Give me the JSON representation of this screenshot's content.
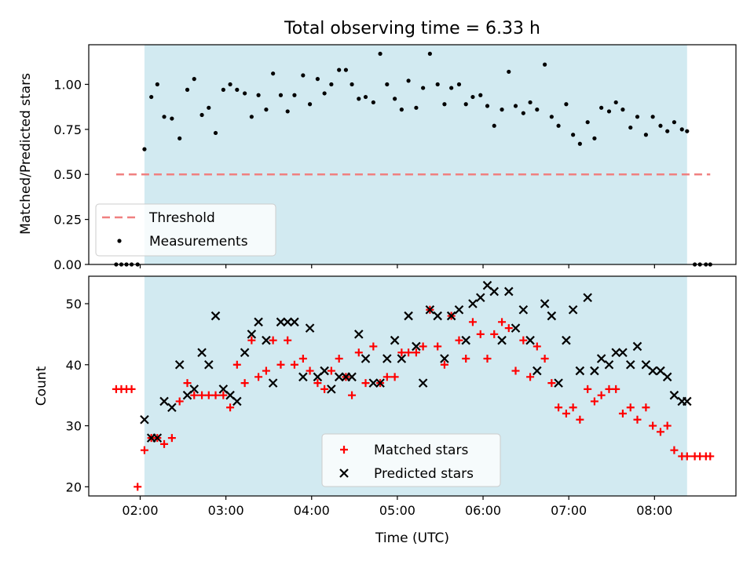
{
  "figure_title": "Total observing time = 6.33 h",
  "colors": {
    "observing_window": "#add8e6",
    "threshold": "#f08080",
    "measurements": "#000000",
    "matched": "#ff0000",
    "predicted": "#000000"
  },
  "chart_data": [
    {
      "type": "scatter",
      "title": "Total observing time = 6.33 h",
      "xlabel": "",
      "ylabel": "Matched/Predicted stars",
      "x_unit": "hours (UTC)",
      "xlim": [
        1.4,
        8.95
      ],
      "ylim": [
        0.0,
        1.22
      ],
      "yticks": [
        "0.00",
        "0.25",
        "0.50",
        "0.75",
        "1.00"
      ],
      "grid": false,
      "legend_position": "lower left",
      "shaded_span": {
        "x_start": 2.05,
        "x_end": 8.38
      },
      "threshold": {
        "label": "Threshold",
        "y": 0.5,
        "x_start": 1.72,
        "x_end": 8.65
      },
      "series": [
        {
          "name": "Measurements",
          "marker": "dot",
          "x": [
            1.72,
            1.78,
            1.84,
            1.9,
            1.97,
            2.05,
            2.13,
            2.2,
            2.28,
            2.37,
            2.46,
            2.55,
            2.63,
            2.72,
            2.8,
            2.88,
            2.97,
            3.05,
            3.13,
            3.22,
            3.3,
            3.38,
            3.47,
            3.55,
            3.64,
            3.72,
            3.8,
            3.9,
            3.98,
            4.07,
            4.15,
            4.23,
            4.32,
            4.4,
            4.47,
            4.55,
            4.63,
            4.72,
            4.8,
            4.88,
            4.97,
            5.05,
            5.13,
            5.22,
            5.3,
            5.38,
            5.47,
            5.55,
            5.63,
            5.72,
            5.8,
            5.88,
            5.97,
            6.05,
            6.13,
            6.22,
            6.3,
            6.38,
            6.47,
            6.55,
            6.63,
            6.72,
            6.8,
            6.88,
            6.97,
            7.05,
            7.13,
            7.22,
            7.3,
            7.38,
            7.47,
            7.55,
            7.63,
            7.72,
            7.8,
            7.9,
            7.98,
            8.07,
            8.15,
            8.23,
            8.32,
            8.38,
            8.47,
            8.53,
            8.6,
            8.65
          ],
          "y": [
            0.0,
            0.0,
            0.0,
            0.0,
            0.0,
            0.64,
            0.93,
            1.0,
            0.82,
            0.81,
            0.7,
            0.97,
            1.03,
            0.83,
            0.87,
            0.73,
            0.97,
            1.0,
            0.97,
            0.95,
            0.82,
            0.94,
            0.86,
            1.06,
            0.94,
            0.85,
            0.94,
            1.05,
            0.89,
            1.03,
            0.95,
            1.0,
            1.08,
            1.08,
            1.0,
            0.92,
            0.93,
            0.9,
            1.17,
            1.0,
            0.92,
            0.86,
            1.02,
            0.87,
            0.98,
            1.17,
            1.0,
            0.89,
            0.98,
            1.0,
            0.89,
            0.93,
            0.94,
            0.88,
            0.77,
            0.86,
            1.07,
            0.88,
            0.84,
            0.9,
            0.86,
            1.11,
            0.82,
            0.77,
            0.89,
            0.72,
            0.67,
            0.79,
            0.7,
            0.87,
            0.85,
            0.9,
            0.86,
            0.76,
            0.82,
            0.72,
            0.82,
            0.77,
            0.74,
            0.79,
            0.75,
            0.74,
            0.0,
            0.0,
            0.0,
            0.0
          ]
        }
      ],
      "legend": [
        "Threshold",
        "Measurements"
      ]
    },
    {
      "type": "scatter",
      "title": "",
      "xlabel": "Time (UTC)",
      "ylabel": "Count",
      "x_unit": "hours (UTC)",
      "xlim": [
        1.4,
        8.95
      ],
      "ylim": [
        18.5,
        54.5
      ],
      "yticks": [
        "20",
        "30",
        "40",
        "50"
      ],
      "xticks": [
        "02:00",
        "03:00",
        "04:00",
        "05:00",
        "06:00",
        "07:00",
        "08:00"
      ],
      "grid": false,
      "legend_position": "lower center",
      "shaded_span": {
        "x_start": 2.05,
        "x_end": 8.38
      },
      "series": [
        {
          "name": "Matched stars",
          "marker": "plus",
          "x": [
            1.72,
            1.78,
            1.84,
            1.9,
            1.97,
            2.05,
            2.13,
            2.2,
            2.28,
            2.37,
            2.46,
            2.55,
            2.63,
            2.72,
            2.8,
            2.88,
            2.97,
            3.05,
            3.13,
            3.22,
            3.3,
            3.38,
            3.47,
            3.55,
            3.64,
            3.72,
            3.8,
            3.9,
            3.98,
            4.07,
            4.15,
            4.23,
            4.32,
            4.4,
            4.47,
            4.55,
            4.63,
            4.72,
            4.8,
            4.88,
            4.97,
            5.05,
            5.13,
            5.22,
            5.3,
            5.38,
            5.47,
            5.55,
            5.63,
            5.72,
            5.8,
            5.88,
            5.97,
            6.05,
            6.13,
            6.22,
            6.3,
            6.38,
            6.47,
            6.55,
            6.63,
            6.72,
            6.8,
            6.88,
            6.97,
            7.05,
            7.13,
            7.22,
            7.3,
            7.38,
            7.47,
            7.55,
            7.63,
            7.72,
            7.8,
            7.9,
            7.98,
            8.07,
            8.15,
            8.23,
            8.32,
            8.38,
            8.47,
            8.53,
            8.6,
            8.65
          ],
          "y": [
            36,
            36,
            36,
            36,
            20,
            26,
            28,
            28,
            27,
            28,
            34,
            37,
            35,
            35,
            35,
            35,
            35,
            33,
            40,
            37,
            44,
            38,
            39,
            44,
            40,
            44,
            40,
            41,
            39,
            37,
            36,
            39,
            41,
            38,
            35,
            42,
            37,
            43,
            37,
            38,
            38,
            42,
            42,
            42,
            43,
            49,
            43,
            40,
            48,
            44,
            41,
            47,
            45,
            41,
            45,
            47,
            46,
            39,
            44,
            38,
            43,
            41,
            37,
            33,
            32,
            33,
            31,
            36,
            34,
            35,
            36,
            36,
            32,
            33,
            31,
            33,
            30,
            29,
            30,
            26,
            25,
            25,
            25,
            25,
            25,
            25
          ]
        },
        {
          "name": "Predicted stars",
          "marker": "x",
          "x": [
            2.05,
            2.13,
            2.2,
            2.28,
            2.37,
            2.46,
            2.55,
            2.63,
            2.72,
            2.8,
            2.88,
            2.97,
            3.05,
            3.13,
            3.22,
            3.3,
            3.38,
            3.47,
            3.55,
            3.64,
            3.72,
            3.8,
            3.9,
            3.98,
            4.07,
            4.15,
            4.23,
            4.32,
            4.4,
            4.47,
            4.55,
            4.63,
            4.72,
            4.8,
            4.88,
            4.97,
            5.05,
            5.13,
            5.22,
            5.3,
            5.38,
            5.47,
            5.55,
            5.63,
            5.72,
            5.8,
            5.88,
            5.97,
            6.05,
            6.13,
            6.22,
            6.3,
            6.38,
            6.47,
            6.55,
            6.63,
            6.72,
            6.8,
            6.88,
            6.97,
            7.05,
            7.13,
            7.22,
            7.3,
            7.38,
            7.47,
            7.55,
            7.63,
            7.72,
            7.8,
            7.9,
            7.98,
            8.07,
            8.15,
            8.23,
            8.32,
            8.38
          ],
          "y": [
            31,
            28,
            28,
            34,
            33,
            40,
            35,
            36,
            42,
            40,
            48,
            36,
            35,
            34,
            42,
            45,
            47,
            44,
            37,
            47,
            47,
            47,
            38,
            46,
            38,
            39,
            36,
            38,
            38,
            38,
            45,
            41,
            37,
            37,
            41,
            44,
            41,
            48,
            43,
            37,
            49,
            48,
            41,
            48,
            49,
            44,
            50,
            51,
            53,
            52,
            44,
            52,
            46,
            49,
            44,
            39,
            50,
            48,
            37,
            44,
            49,
            39,
            51,
            39,
            41,
            40,
            42,
            42,
            40,
            43,
            40,
            39,
            39,
            38,
            35,
            34,
            34
          ]
        }
      ],
      "legend": [
        "Matched stars",
        "Predicted stars"
      ]
    }
  ]
}
